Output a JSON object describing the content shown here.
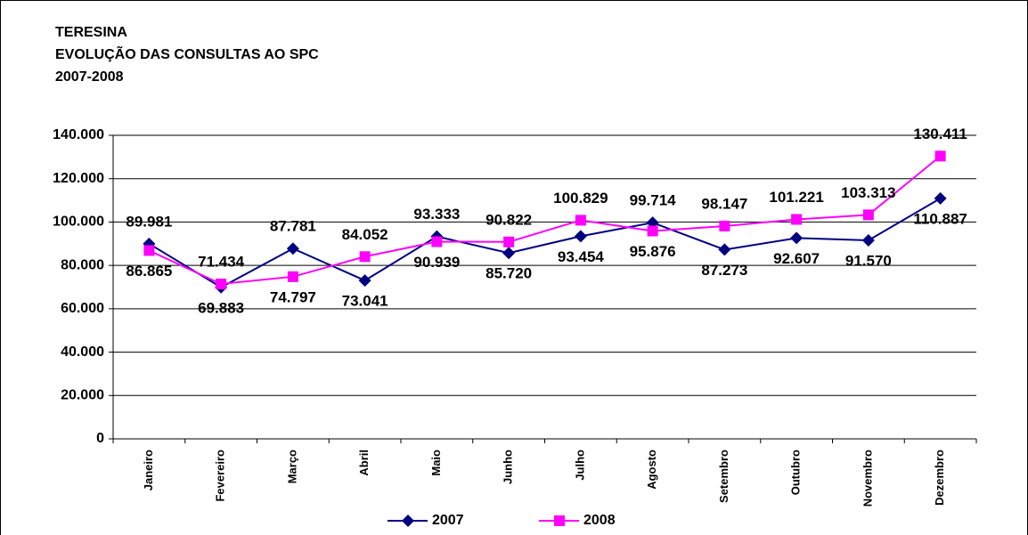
{
  "chart_data": {
    "type": "line",
    "title_lines": [
      "TERESINA",
      "EVOLUÇÃO DAS CONSULTAS AO SPC",
      "2007-2008"
    ],
    "categories": [
      "Janeiro",
      "Fevereiro",
      "Março",
      "Abril",
      "Maio",
      "Junho",
      "Julho",
      "Agosto",
      "Setembro",
      "Outubro",
      "Novembro",
      "Dezembro"
    ],
    "series": [
      {
        "name": "2007",
        "color": "#000080",
        "marker": "diamond",
        "values": [
          89981,
          69883,
          87781,
          73041,
          93333,
          85720,
          93454,
          99714,
          87273,
          92607,
          91570,
          110887
        ],
        "value_labels": [
          "89.981",
          "69.883",
          "87.781",
          "73.041",
          "93.333",
          "85.720",
          "93.454",
          "99.714",
          "87.273",
          "92.607",
          "91.570",
          "110.887"
        ]
      },
      {
        "name": "2008",
        "color": "#ff00ff",
        "marker": "square",
        "values": [
          86865,
          71434,
          74797,
          84052,
          90939,
          90822,
          100829,
          95876,
          98147,
          101221,
          103313,
          130411
        ],
        "value_labels": [
          "86.865",
          "71.434",
          "74.797",
          "84.052",
          "90.939",
          "90.822",
          "100.829",
          "95.876",
          "98.147",
          "101.221",
          "103.313",
          "130.411"
        ]
      }
    ],
    "ylim": [
      0,
      140000
    ],
    "yticks": [
      0,
      {
        "value": 20000,
        "label": "20.000"
      },
      {
        "value": 40000,
        "label": "40.000"
      },
      {
        "value": 60000,
        "label": "60.000"
      },
      {
        "value": 80000,
        "label": "80.000"
      },
      {
        "value": 100000,
        "label": "100.000"
      },
      {
        "value": 120000,
        "label": "120.000"
      },
      {
        "value": 140000,
        "label": "140.000"
      }
    ],
    "grid": true,
    "legend": "bottom"
  }
}
